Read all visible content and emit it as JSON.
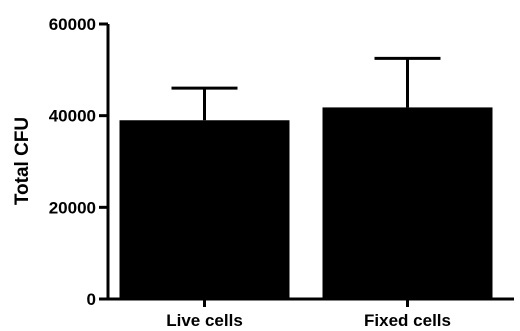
{
  "chart_data": {
    "type": "bar",
    "title": "",
    "xlabel": "",
    "ylabel": "Total CFU",
    "ylim": [
      0,
      60000
    ],
    "yticks": [
      0,
      20000,
      40000,
      60000
    ],
    "ytick_labels": [
      "0",
      "20000",
      "40000",
      "60000"
    ],
    "categories": [
      "Live cells",
      "Fixed cells"
    ],
    "values": [
      39000,
      41800
    ],
    "error_upper": [
      46000,
      52500
    ],
    "grid": false,
    "legend": "none",
    "bar_color": "#000000"
  }
}
